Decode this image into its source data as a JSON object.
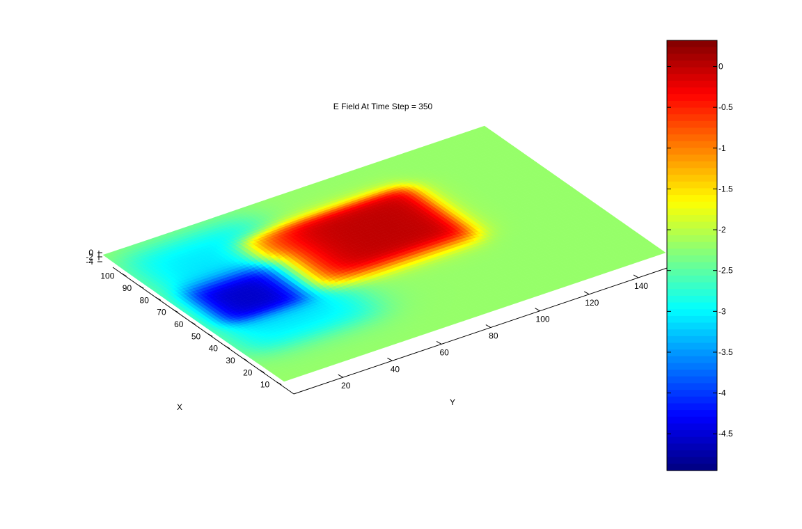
{
  "chart_data": {
    "type": "surface",
    "title": "E Field At Time Step = 350",
    "xlabel": "X",
    "ylabel": "Y",
    "xlim": [
      0,
      105
    ],
    "ylim": [
      0,
      155
    ],
    "zlim": [
      -5,
      0
    ],
    "x_ticks": [
      10,
      20,
      30,
      40,
      50,
      60,
      70,
      80,
      90,
      100
    ],
    "y_ticks": [
      20,
      40,
      60,
      80,
      100,
      120,
      140
    ],
    "z_ticks": [
      "0",
      "-2",
      "-4"
    ],
    "colormap": "jet",
    "colorbar": {
      "ticks": [
        0,
        -0.5,
        -1,
        -1.5,
        -2,
        -2.5,
        -3,
        -3.5,
        -4,
        -4.5
      ],
      "labels": [
        "0",
        "-0.5",
        "-1",
        "-1.5",
        "-2",
        "-2.5",
        "-3",
        "-3.5",
        "-4",
        "-4.5"
      ],
      "range": [
        -4.95,
        0.32
      ]
    },
    "background_level": -2.2,
    "regions": [
      {
        "description": "high field plateau",
        "x_range": [
          44,
          86
        ],
        "y_range": [
          42,
          110
        ],
        "value": 0
      },
      {
        "description": "low field well",
        "x_range": [
          43,
          70
        ],
        "y_range": [
          8,
          48
        ],
        "value": -4.6
      },
      {
        "description": "moderate low region",
        "x_range": [
          20,
          100
        ],
        "y_range": [
          2,
          55
        ],
        "value": -3.1
      }
    ],
    "colors": {
      "background": "#ffffff",
      "axes": "#000000"
    }
  }
}
